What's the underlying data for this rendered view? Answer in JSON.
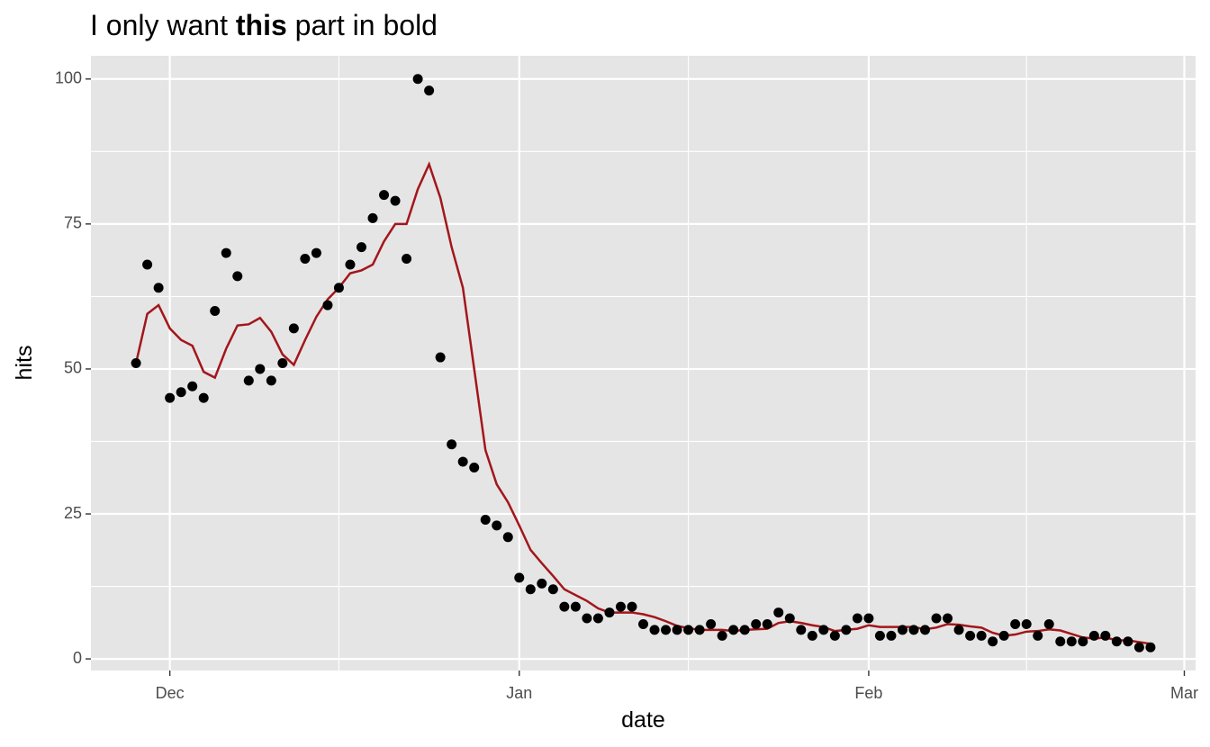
{
  "chart_data": {
    "type": "scatter",
    "title": {
      "plain_before": "I only want ",
      "bold": "this",
      "plain_after": " part in bold"
    },
    "xlabel": "date",
    "ylabel": "hits",
    "x_ticks": [
      "Dec",
      "Jan",
      "Feb",
      "Mar"
    ],
    "y_ticks": [
      "0",
      "25",
      "50",
      "75",
      "100"
    ],
    "ylim": [
      -2,
      104
    ],
    "xlim": [
      "2017-11-24",
      "2018-03-02"
    ],
    "grid": true,
    "legend": "none",
    "colors": {
      "panel_background": "#E5E5E5",
      "grid": "#FFFFFF",
      "points": "#000000",
      "line": "#A3161B",
      "tick_text": "#4D4D4D",
      "title_text": "#000000"
    },
    "series": [
      {
        "type": "scatter",
        "x": [
          "2017-11-28",
          "2017-11-29",
          "2017-11-30",
          "2017-12-01",
          "2017-12-02",
          "2017-12-03",
          "2017-12-04",
          "2017-12-05",
          "2017-12-06",
          "2017-12-07",
          "2017-12-08",
          "2017-12-09",
          "2017-12-10",
          "2017-12-11",
          "2017-12-12",
          "2017-12-13",
          "2017-12-14",
          "2017-12-15",
          "2017-12-16",
          "2017-12-17",
          "2017-12-18",
          "2017-12-19",
          "2017-12-20",
          "2017-12-21",
          "2017-12-22",
          "2017-12-23",
          "2017-12-24",
          "2017-12-25",
          "2017-12-26",
          "2017-12-27",
          "2017-12-28",
          "2017-12-29",
          "2017-12-30",
          "2017-12-31",
          "2018-01-01",
          "2018-01-02",
          "2018-01-03",
          "2018-01-04",
          "2018-01-05",
          "2018-01-06",
          "2018-01-07",
          "2018-01-08",
          "2018-01-09",
          "2018-01-10",
          "2018-01-11",
          "2018-01-12",
          "2018-01-13",
          "2018-01-14",
          "2018-01-15",
          "2018-01-16",
          "2018-01-17",
          "2018-01-18",
          "2018-01-19",
          "2018-01-20",
          "2018-01-21",
          "2018-01-22",
          "2018-01-23",
          "2018-01-24",
          "2018-01-25",
          "2018-01-26",
          "2018-01-27",
          "2018-01-28",
          "2018-01-29",
          "2018-01-30",
          "2018-01-31",
          "2018-02-01",
          "2018-02-02",
          "2018-02-03",
          "2018-02-04",
          "2018-02-05",
          "2018-02-06",
          "2018-02-07",
          "2018-02-08",
          "2018-02-09",
          "2018-02-10",
          "2018-02-11",
          "2018-02-12",
          "2018-02-13",
          "2018-02-14",
          "2018-02-15",
          "2018-02-16",
          "2018-02-17",
          "2018-02-18",
          "2018-02-19",
          "2018-02-20",
          "2018-02-21",
          "2018-02-22",
          "2018-02-23",
          "2018-02-24",
          "2018-02-25",
          "2018-02-26"
        ],
        "values": [
          51,
          68,
          64,
          45,
          46,
          47,
          45,
          60,
          70,
          66,
          48,
          50,
          48,
          51,
          57,
          69,
          70,
          61,
          64,
          68,
          71,
          76,
          80,
          79,
          69,
          100,
          98,
          52,
          37,
          34,
          33,
          24,
          23,
          21,
          14,
          12,
          13,
          12,
          9,
          9,
          7,
          7,
          8,
          9,
          9,
          6,
          5,
          5,
          5,
          5,
          5,
          6,
          4,
          5,
          5,
          6,
          6,
          8,
          7,
          5,
          4,
          5,
          4,
          5,
          7,
          7,
          4,
          4,
          5,
          5,
          5,
          7,
          7,
          5,
          4,
          4,
          3,
          4,
          6,
          6,
          4,
          6,
          3,
          3,
          3,
          4,
          4,
          3,
          3,
          2,
          2
        ]
      },
      {
        "type": "line",
        "x": [
          "2017-11-28",
          "2017-11-29",
          "2017-11-30",
          "2017-12-01",
          "2017-12-02",
          "2017-12-03",
          "2017-12-04",
          "2017-12-05",
          "2017-12-06",
          "2017-12-07",
          "2017-12-08",
          "2017-12-09",
          "2017-12-10",
          "2017-12-11",
          "2017-12-12",
          "2017-12-13",
          "2017-12-14",
          "2017-12-15",
          "2017-12-16",
          "2017-12-17",
          "2017-12-18",
          "2017-12-19",
          "2017-12-20",
          "2017-12-21",
          "2017-12-22",
          "2017-12-23",
          "2017-12-24",
          "2017-12-25",
          "2017-12-26",
          "2017-12-27",
          "2017-12-28",
          "2017-12-29",
          "2017-12-30",
          "2017-12-31",
          "2018-01-01",
          "2018-01-02",
          "2018-01-03",
          "2018-01-04",
          "2018-01-05",
          "2018-01-06",
          "2018-01-07",
          "2018-01-08",
          "2018-01-09",
          "2018-01-10",
          "2018-01-11",
          "2018-01-12",
          "2018-01-13",
          "2018-01-14",
          "2018-01-15",
          "2018-01-16",
          "2018-01-17",
          "2018-01-18",
          "2018-01-19",
          "2018-01-20",
          "2018-01-21",
          "2018-01-22",
          "2018-01-23",
          "2018-01-24",
          "2018-01-25",
          "2018-01-26",
          "2018-01-27",
          "2018-01-28",
          "2018-01-29",
          "2018-01-30",
          "2018-01-31",
          "2018-02-01",
          "2018-02-02",
          "2018-02-03",
          "2018-02-04",
          "2018-02-05",
          "2018-02-06",
          "2018-02-07",
          "2018-02-08",
          "2018-02-09",
          "2018-02-10",
          "2018-02-11",
          "2018-02-12",
          "2018-02-13",
          "2018-02-14",
          "2018-02-15",
          "2018-02-16",
          "2018-02-17",
          "2018-02-18",
          "2018-02-19",
          "2018-02-20",
          "2018-02-21",
          "2018-02-22",
          "2018-02-23",
          "2018-02-24",
          "2018-02-25",
          "2018-02-26"
        ],
        "values": [
          51,
          59.5,
          61,
          57,
          55,
          54,
          49.5,
          48.5,
          53.5,
          57.5,
          57.7,
          58.8,
          56.4,
          52.5,
          50.7,
          55,
          59,
          62,
          64,
          66.5,
          67,
          68,
          72,
          75,
          75,
          81,
          85.3,
          79.5,
          71,
          64,
          50,
          36,
          30.1,
          27,
          23,
          18.8,
          16.5,
          14.3,
          12,
          11,
          10,
          8.7,
          8,
          8,
          8,
          7.7,
          7.2,
          6.5,
          5.7,
          5.3,
          5,
          5,
          5,
          4.8,
          5,
          5.1,
          5.2,
          6.2,
          6.5,
          6.2,
          5.8,
          5.5,
          4.8,
          5,
          5.2,
          5.8,
          5.5,
          5.5,
          5.5,
          5.5,
          5.1,
          5.4,
          6,
          5.9,
          5.6,
          5.4,
          4.5,
          4,
          4.2,
          4.7,
          4.8,
          5.1,
          4.9,
          4.3,
          3.7,
          3.5,
          3.7,
          3.2,
          3.2,
          2.9,
          2.6
        ]
      }
    ]
  }
}
